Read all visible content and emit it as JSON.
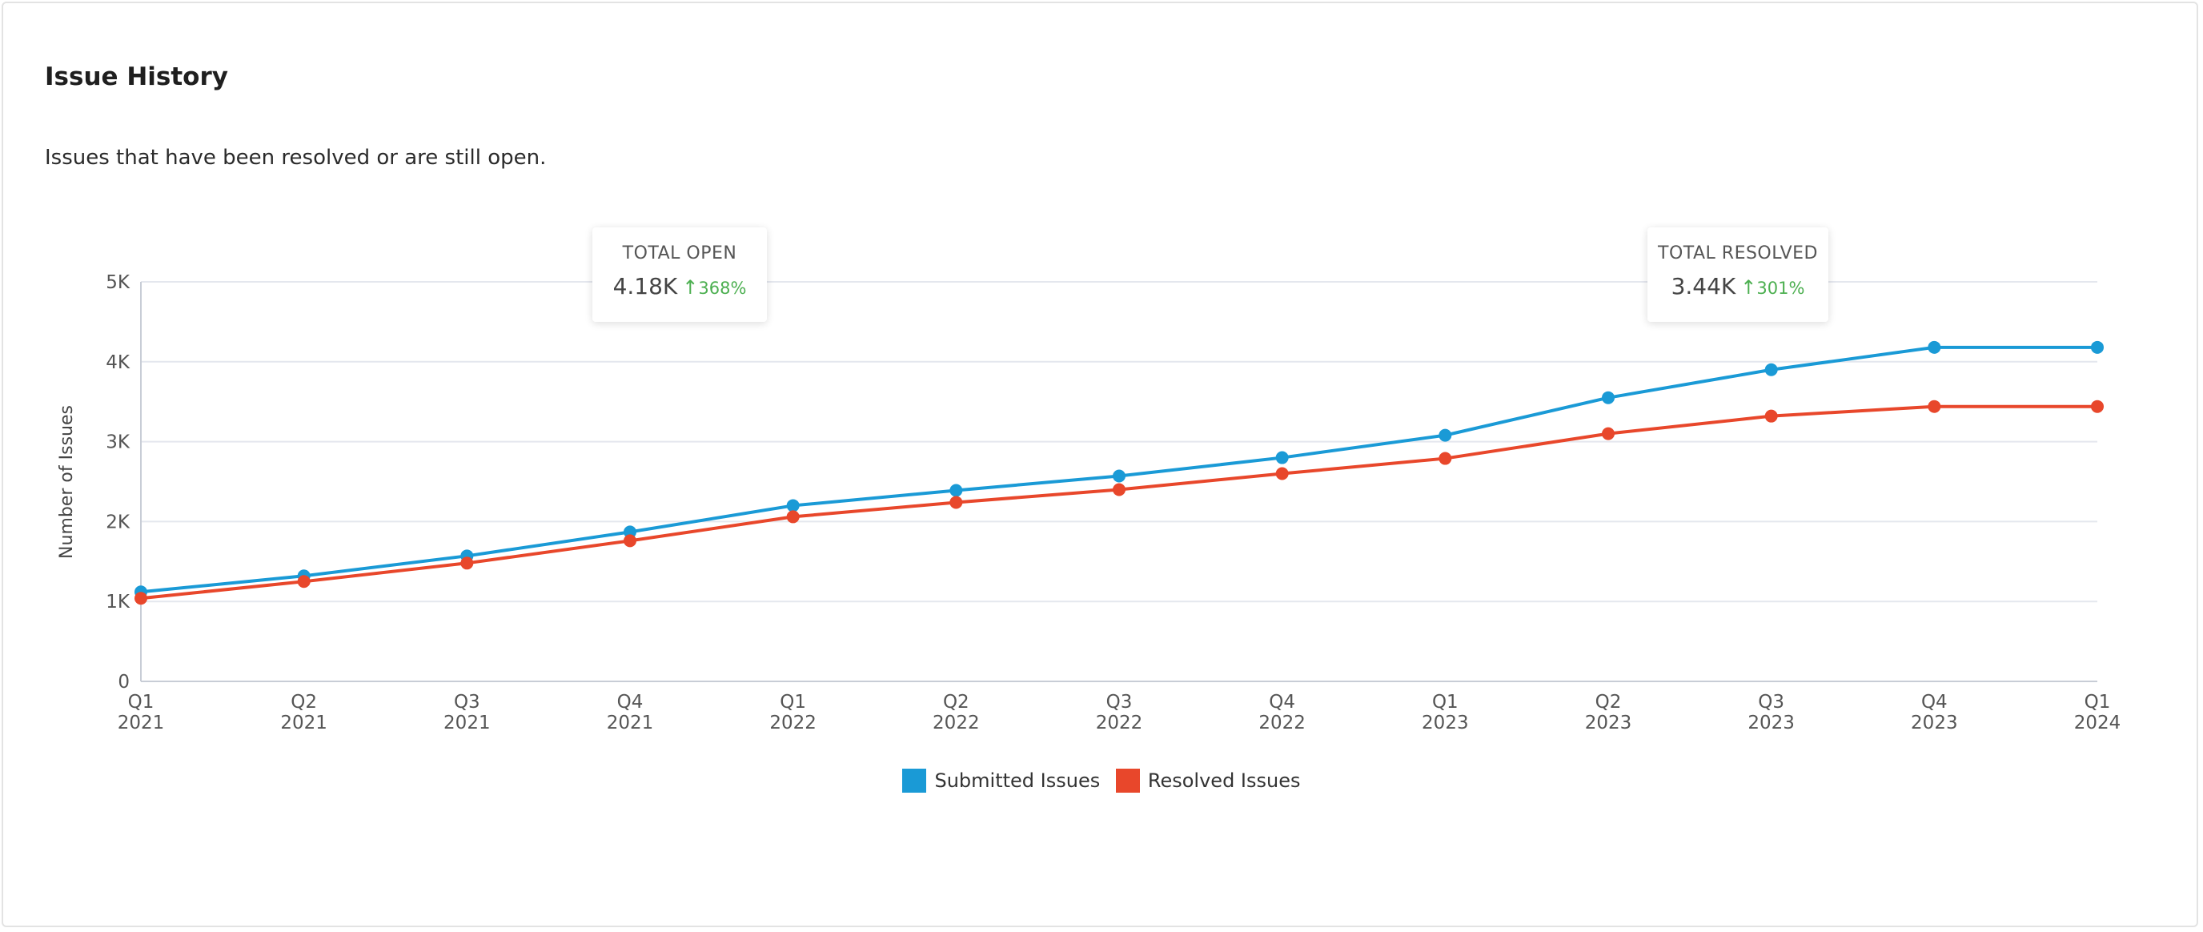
{
  "header": {
    "title": "Issue History",
    "subtitle": "Issues that have been resolved or are still open."
  },
  "stats": {
    "open": {
      "label": "TOTAL OPEN",
      "value": "4.18K",
      "change": "368%",
      "direction": "up"
    },
    "resolved": {
      "label": "TOTAL RESOLVED",
      "value": "3.44K",
      "change": "301%",
      "direction": "up"
    }
  },
  "chart_data": {
    "type": "line",
    "categories": [
      [
        "Q1",
        "2021"
      ],
      [
        "Q2",
        "2021"
      ],
      [
        "Q3",
        "2021"
      ],
      [
        "Q4",
        "2021"
      ],
      [
        "Q1",
        "2022"
      ],
      [
        "Q2",
        "2022"
      ],
      [
        "Q3",
        "2022"
      ],
      [
        "Q4",
        "2022"
      ],
      [
        "Q1",
        "2023"
      ],
      [
        "Q2",
        "2023"
      ],
      [
        "Q3",
        "2023"
      ],
      [
        "Q4",
        "2023"
      ],
      [
        "Q1",
        "2024"
      ]
    ],
    "series": [
      {
        "name": "Submitted Issues",
        "color": "#1a9ad6",
        "values": [
          1120,
          1320,
          1570,
          1870,
          2200,
          2390,
          2570,
          2800,
          3080,
          3550,
          3900,
          4180,
          4180
        ]
      },
      {
        "name": "Resolved Issues",
        "color": "#e8472b",
        "values": [
          1040,
          1250,
          1480,
          1760,
          2060,
          2240,
          2400,
          2600,
          2790,
          3100,
          3320,
          3440,
          3440
        ]
      }
    ],
    "ylabel": "Number of Issues",
    "xlabel": "",
    "ylim": [
      0,
      5000
    ],
    "yticks": [
      {
        "value": 0,
        "label": "0"
      },
      {
        "value": 1000,
        "label": "1K"
      },
      {
        "value": 2000,
        "label": "2K"
      },
      {
        "value": 3000,
        "label": "3K"
      },
      {
        "value": 4000,
        "label": "4K"
      },
      {
        "value": 5000,
        "label": "5K"
      }
    ],
    "grid": true,
    "legend": "bottom-center"
  }
}
